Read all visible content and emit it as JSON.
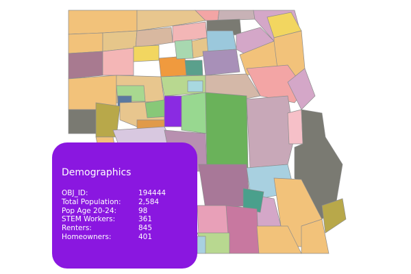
{
  "popup": {
    "title": "Demographics",
    "rows": [
      {
        "label": "OBJ_ID:",
        "value": "194444"
      },
      {
        "label": "Total Population:",
        "value": "2,584"
      },
      {
        "label": "Pop Age 20-24:",
        "value": "98"
      },
      {
        "label": "STEM Workers:",
        "value": "361"
      },
      {
        "label": "Renters:",
        "value": "845"
      },
      {
        "label": "Homeowners:",
        "value": "401"
      }
    ]
  }
}
